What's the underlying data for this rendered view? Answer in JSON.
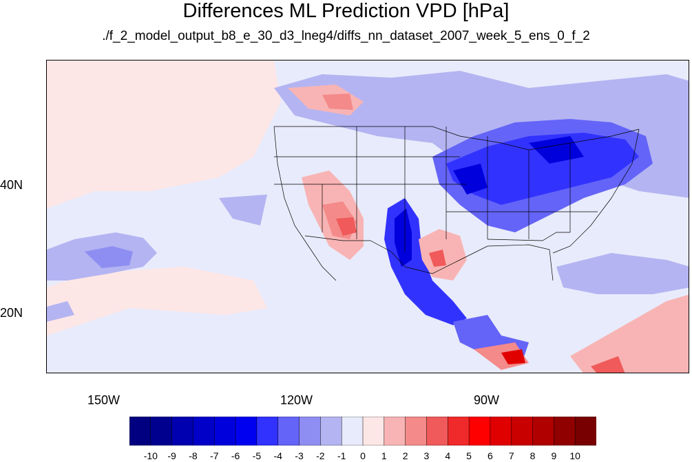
{
  "title": "Differences ML Prediction VPD [hPa]",
  "subtitle": "./f_2_model_output_b8_e_30_d3_lneg4/diffs_nn_dataset_2007_week_5_ens_0_f_2",
  "axes": {
    "lon_labels": [
      "150W",
      "120W",
      "90W"
    ],
    "lat_labels": [
      "40N",
      "20N"
    ]
  },
  "colorbar": {
    "labels": [
      "-10",
      "-9",
      "-8",
      "-7",
      "-6",
      "-5",
      "-4",
      "-3",
      "-2",
      "-1",
      "0",
      "1",
      "2",
      "3",
      "4",
      "5",
      "6",
      "7",
      "8",
      "9",
      "10"
    ],
    "colors": [
      "#000080",
      "#00008f",
      "#0000b0",
      "#0000c8",
      "#0000dc",
      "#0000f0",
      "#3232ff",
      "#6464f8",
      "#8e8ef2",
      "#b4b4f2",
      "#e8ebfb",
      "#fde6e6",
      "#f8b4b4",
      "#f48a8a",
      "#f05a5a",
      "#f02a2a",
      "#ff0000",
      "#e00000",
      "#c80000",
      "#b00000",
      "#900000",
      "#780000"
    ]
  },
  "colors": {
    "background": "#e8ebfb",
    "ocean_pink": "#fde6e6",
    "neg_light": "#b4b4f2",
    "neg_mid": "#8e8ef2",
    "neg_strong": "#3232ff",
    "neg_deep": "#0000dc",
    "pos_light": "#f8b4b4",
    "pos_mid": "#f48a8a",
    "pos_strong": "#f05a5a",
    "pos_deep": "#e00000"
  }
}
